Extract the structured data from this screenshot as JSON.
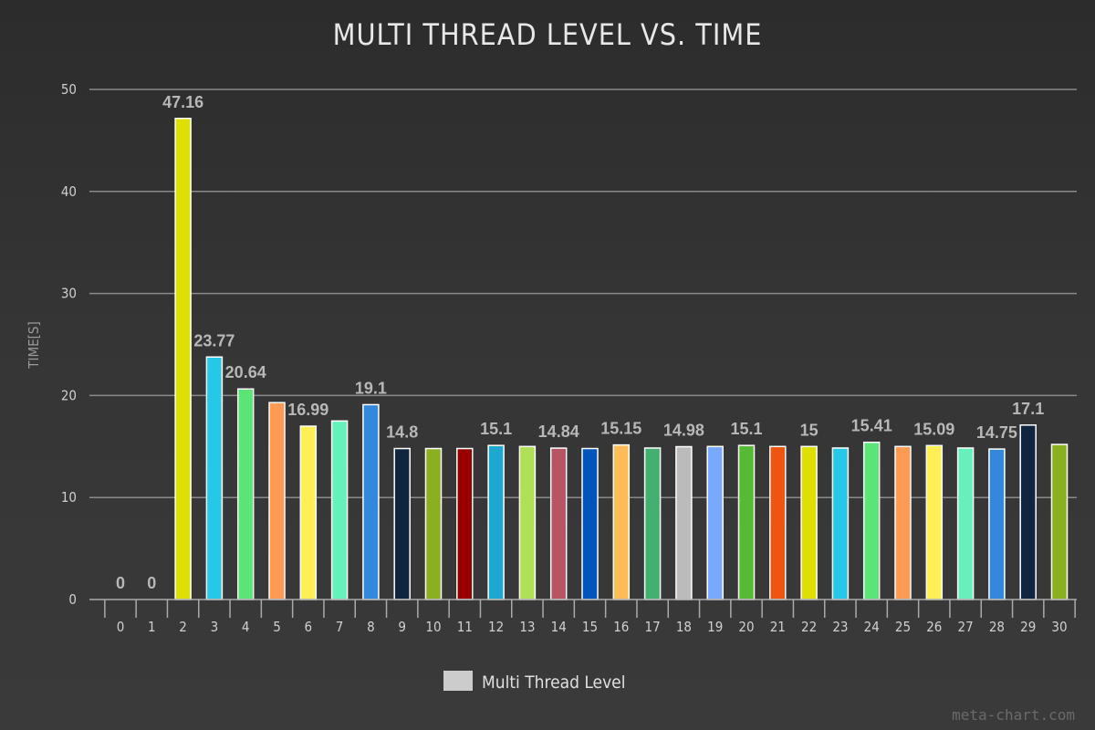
{
  "chart_data": {
    "type": "bar",
    "title": "MULTI THREAD LEVEL VS. TIME",
    "xlabel": "",
    "ylabel": "TIME[S]",
    "ylim": [
      0,
      50
    ],
    "yticks": [
      0,
      10,
      20,
      30,
      40,
      50
    ],
    "grid": true,
    "legend_position": "bottom-center",
    "categories": [
      "0",
      "1",
      "2",
      "3",
      "4",
      "5",
      "6",
      "7",
      "8",
      "9",
      "10",
      "11",
      "12",
      "13",
      "14",
      "15",
      "16",
      "17",
      "18",
      "19",
      "20",
      "21",
      "22",
      "23",
      "24",
      "25",
      "26",
      "27",
      "28",
      "29",
      "30"
    ],
    "series": [
      {
        "name": "Multi Thread Level",
        "legend_color": "#cccccc",
        "values": [
          0,
          0,
          47.16,
          23.77,
          20.64,
          19.3,
          16.99,
          17.5,
          19.1,
          14.8,
          14.8,
          14.8,
          15.1,
          15.0,
          14.84,
          14.8,
          15.15,
          14.85,
          14.98,
          15.0,
          15.1,
          15.0,
          15.0,
          14.85,
          15.41,
          15.0,
          15.09,
          14.85,
          14.75,
          17.1,
          15.2
        ],
        "data_labels": [
          "0",
          "0",
          "47.16",
          "23.77",
          "20.64",
          "",
          "16.99",
          "",
          "19.1",
          "14.8",
          "",
          "",
          "15.1",
          "",
          "14.84",
          "",
          "15.15",
          "",
          "14.98",
          "",
          "15.1",
          "",
          "15",
          "",
          "15.41",
          "",
          "15.09",
          "",
          "14.75",
          "17.1",
          ""
        ],
        "colors": [
          "#dde000",
          "#26c8e8",
          "#dde000",
          "#26c8e8",
          "#5ae576",
          "#ff9a55",
          "#ffee55",
          "#66f0bb",
          "#3388dd",
          "#102540",
          "#8ab020",
          "#990000",
          "#1ea8d0",
          "#b0e055",
          "#b85565",
          "#0055bb",
          "#ffbb55",
          "#44b070",
          "#bbbbbb",
          "#77aaff",
          "#55bb33",
          "#ee5511",
          "#dde000",
          "#26c8e8",
          "#5ae576",
          "#ff9a55",
          "#ffee55",
          "#66f0bb",
          "#3388dd",
          "#102540",
          "#8ab020"
        ]
      }
    ]
  },
  "watermark": "meta-chart.com"
}
